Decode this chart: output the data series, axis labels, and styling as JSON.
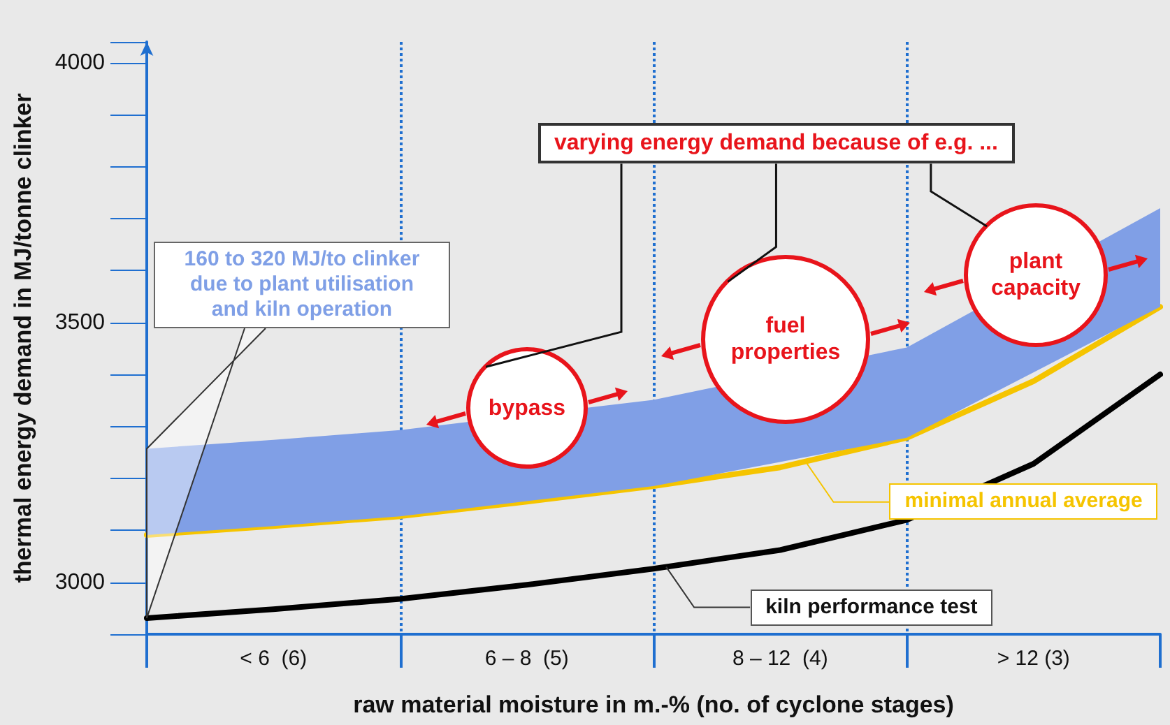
{
  "chart_data": {
    "type": "line",
    "xlabel": "raw material moisture in m.-% (no. of cyclone stages)",
    "ylabel": "thermal energy demand in MJ/tonne clinker",
    "categories": [
      null,
      "< 6  (6)",
      null,
      "6 – 8  (5)",
      null,
      "8 – 12  (4)",
      null,
      "> 12 (3)",
      null
    ],
    "ylim": [
      2900,
      4040
    ],
    "yticks": [
      3000,
      3500,
      4000
    ],
    "grid": "x",
    "legend": false,
    "marker": "none",
    "line_style": "solid",
    "series": [
      {
        "type": "area",
        "color": "#809fe6",
        "values": [
          3257,
          3274,
          3293,
          null,
          3351,
          null,
          3452,
          null,
          3720
        ]
      },
      {
        "name": "minimal annual average",
        "color": "#f5c400",
        "values": [
          3091,
          3108,
          3127,
          3155,
          3185,
          3221,
          3278,
          3387,
          3530
        ]
      },
      {
        "name": "kiln performance test",
        "color": "#000000",
        "values": [
          2931,
          2948,
          2968,
          2995,
          3026,
          3062,
          3120,
          3228,
          3400
        ]
      }
    ],
    "annotations": [
      "varying energy demand because of e.g. ...",
      "160 to 320 MJ/to clinker due to plant utilisation and kiln operation",
      "bypass",
      "fuel properties",
      "plant capacity"
    ]
  }
}
